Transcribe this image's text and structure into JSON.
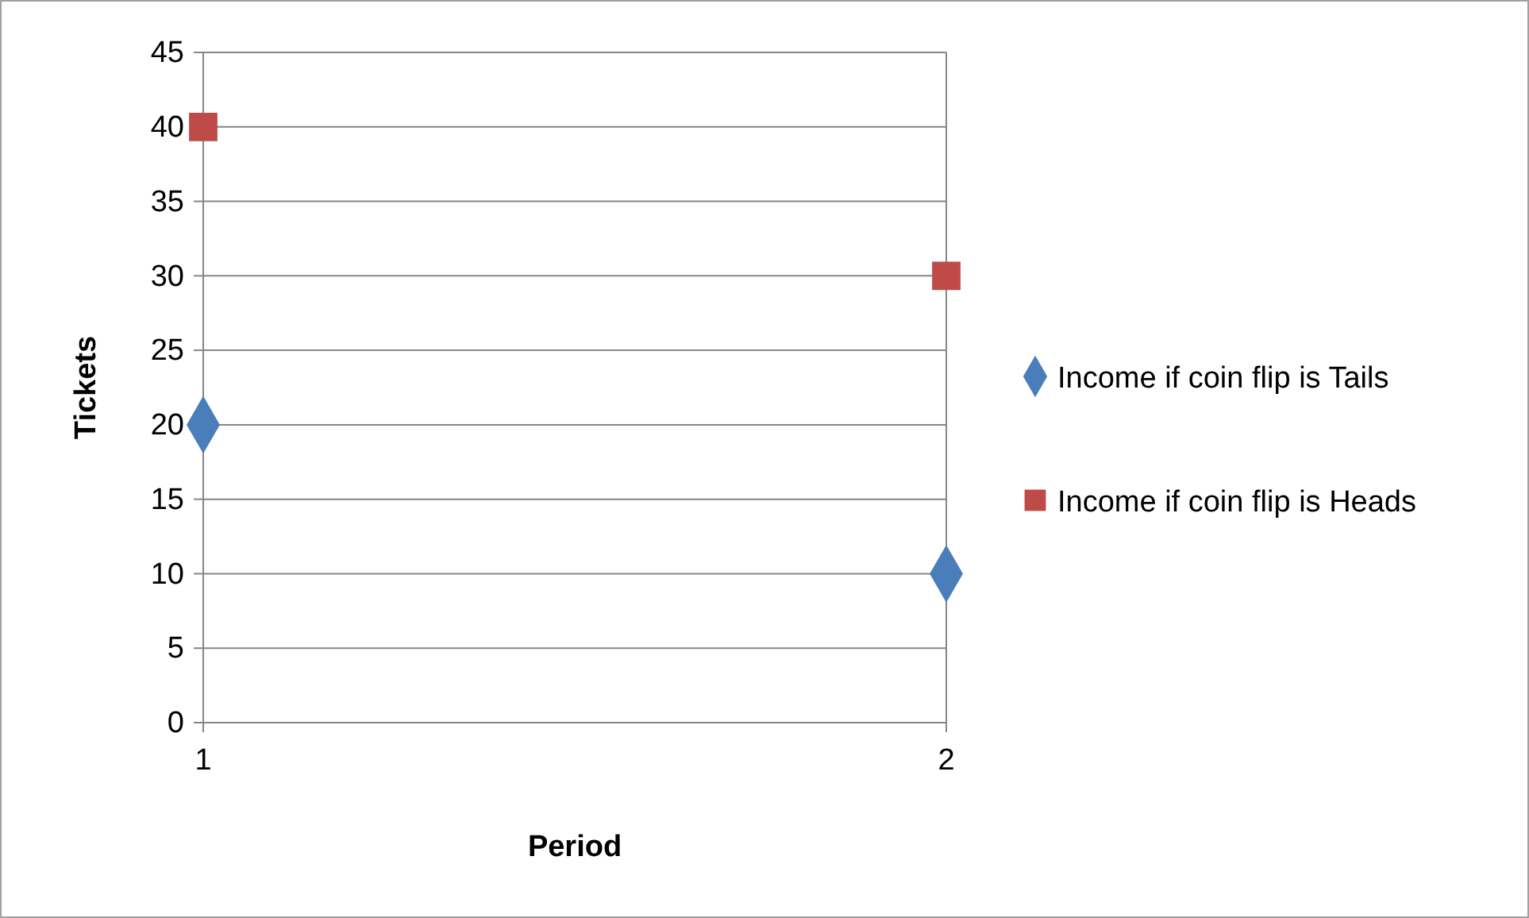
{
  "chart_data": {
    "type": "scatter",
    "xlabel": "Period",
    "ylabel": "Tickets",
    "x": [
      1,
      2
    ],
    "xlim": [
      1,
      2
    ],
    "xticks": [
      1,
      2
    ],
    "ylim": [
      0,
      45
    ],
    "yticks": [
      0,
      5,
      10,
      15,
      20,
      25,
      30,
      35,
      40,
      45
    ],
    "grid": true,
    "legend": "right",
    "series": [
      {
        "name": "Income if coin flip is Tails",
        "color": "#4a7ebb",
        "marker": "diamond",
        "values": [
          20,
          10
        ]
      },
      {
        "name": "Income if coin flip is Heads",
        "color": "#be4b48",
        "marker": "square",
        "values": [
          40,
          30
        ]
      }
    ]
  }
}
